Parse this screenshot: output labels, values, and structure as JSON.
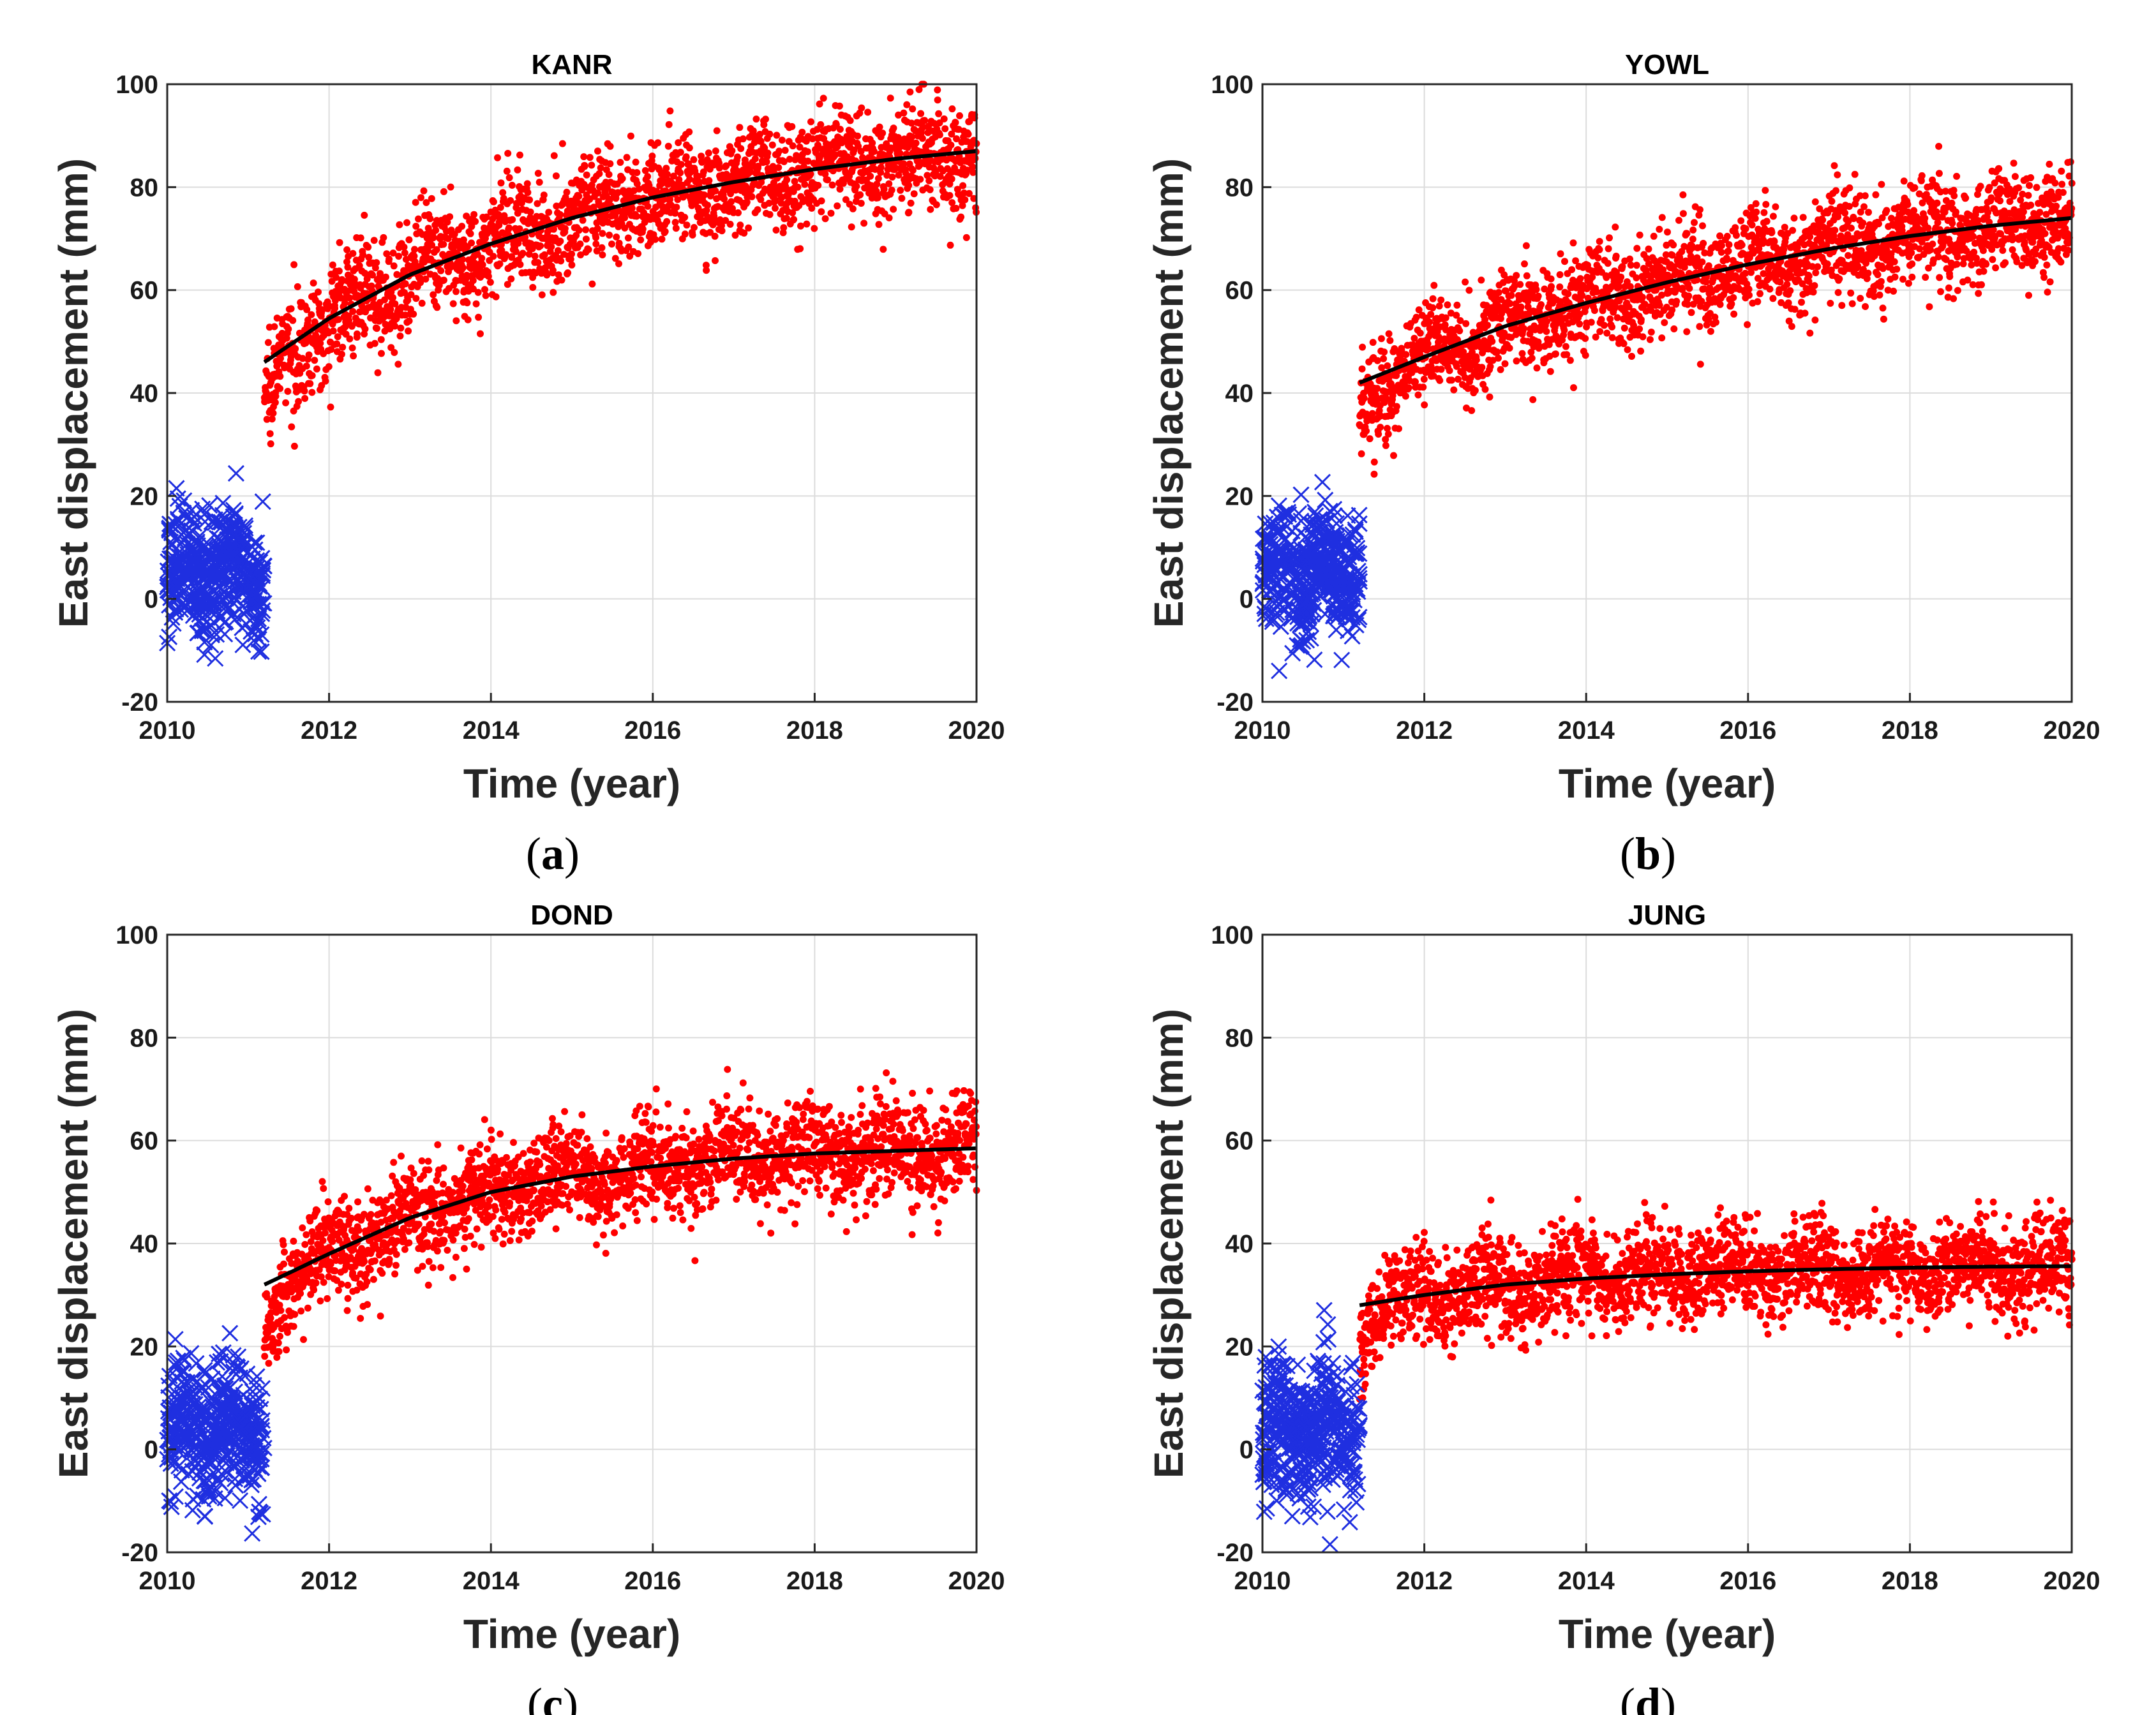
{
  "chart_data": [
    {
      "type": "scatter",
      "panel_id": "a",
      "title": "KANR",
      "caption": "a",
      "xlabel": "Time (year)",
      "ylabel": "East displacement (mm)",
      "xlim": [
        2010,
        2020
      ],
      "ylim": [
        -20,
        100
      ],
      "xticks": [
        2010,
        2012,
        2014,
        2016,
        2018,
        2020
      ],
      "yticks": [
        -20,
        0,
        20,
        40,
        60,
        80,
        100
      ],
      "grid": true,
      "event_year": 2011.2,
      "pre_event": {
        "marker": "x",
        "color": "#1f2fe0",
        "x_range": [
          2010,
          2011.2
        ],
        "mean": 5,
        "sd": 6
      },
      "post_event": {
        "marker": "dot",
        "color": "#ff0000",
        "sd": 5.2
      },
      "fit_curve": {
        "color": "#000000",
        "x": [
          2011.2,
          2012,
          2013,
          2014,
          2015,
          2016,
          2017,
          2018,
          2019,
          2020
        ],
        "y": [
          46,
          54.5,
          63,
          69,
          74,
          78,
          81,
          83.5,
          85.5,
          87
        ]
      }
    },
    {
      "type": "scatter",
      "panel_id": "b",
      "title": "YOWL",
      "caption": "b",
      "xlabel": "Time (year)",
      "ylabel": "East displacement (mm)",
      "xlim": [
        2010,
        2020
      ],
      "ylim": [
        -20,
        100
      ],
      "xticks": [
        2010,
        2012,
        2014,
        2016,
        2018,
        2020
      ],
      "yticks": [
        -20,
        0,
        20,
        40,
        60,
        80,
        100
      ],
      "grid": true,
      "event_year": 2011.2,
      "pre_event": {
        "marker": "x",
        "color": "#1f2fe0",
        "x_range": [
          2010,
          2011.2
        ],
        "mean": 5,
        "sd": 6
      },
      "post_event": {
        "marker": "dot",
        "color": "#ff0000",
        "sd": 5.0
      },
      "fit_curve": {
        "color": "#000000",
        "x": [
          2011.2,
          2012,
          2013,
          2014,
          2015,
          2016,
          2017,
          2018,
          2019,
          2020
        ],
        "y": [
          42,
          47,
          53,
          57.5,
          61.5,
          65,
          68,
          70.5,
          72.5,
          74
        ]
      }
    },
    {
      "type": "scatter",
      "panel_id": "c",
      "title": "DOND",
      "caption": "c",
      "xlabel": "Time (year)",
      "ylabel": "East displacement (mm)",
      "xlim": [
        2010,
        2020
      ],
      "ylim": [
        -20,
        100
      ],
      "xticks": [
        2010,
        2012,
        2014,
        2016,
        2018,
        2020
      ],
      "yticks": [
        -20,
        0,
        20,
        40,
        60,
        80,
        100
      ],
      "grid": true,
      "event_year": 2011.2,
      "pre_event": {
        "marker": "x",
        "color": "#1f2fe0",
        "x_range": [
          2010,
          2011.2
        ],
        "mean": 4,
        "sd": 6.5
      },
      "post_event": {
        "marker": "dot",
        "color": "#ff0000",
        "sd": 4.8
      },
      "fit_curve": {
        "color": "#000000",
        "x": [
          2011.2,
          2012,
          2013,
          2014,
          2015,
          2016,
          2017,
          2018,
          2019,
          2020
        ],
        "y": [
          32,
          38,
          45,
          50,
          53,
          55,
          56.5,
          57.5,
          58,
          58.5
        ]
      }
    },
    {
      "type": "scatter",
      "panel_id": "d",
      "title": "JUNG",
      "caption": "d",
      "xlabel": "Time (year)",
      "ylabel": "East displacement (mm)",
      "xlim": [
        2010,
        2020
      ],
      "ylim": [
        -20,
        100
      ],
      "xticks": [
        2010,
        2012,
        2014,
        2016,
        2018,
        2020
      ],
      "yticks": [
        -20,
        0,
        20,
        40,
        60,
        80,
        100
      ],
      "grid": true,
      "event_year": 2011.2,
      "pre_event": {
        "marker": "x",
        "color": "#1f2fe0",
        "x_range": [
          2010,
          2011.2
        ],
        "mean": 4,
        "sd": 6.5
      },
      "post_event": {
        "marker": "dot",
        "color": "#ff0000",
        "sd": 4.5
      },
      "fit_curve": {
        "color": "#000000",
        "x": [
          2011.2,
          2012,
          2013,
          2014,
          2015,
          2016,
          2017,
          2018,
          2019,
          2020
        ],
        "y": [
          28,
          30,
          32,
          33.2,
          34,
          34.6,
          35,
          35.3,
          35.5,
          35.6
        ]
      }
    }
  ]
}
